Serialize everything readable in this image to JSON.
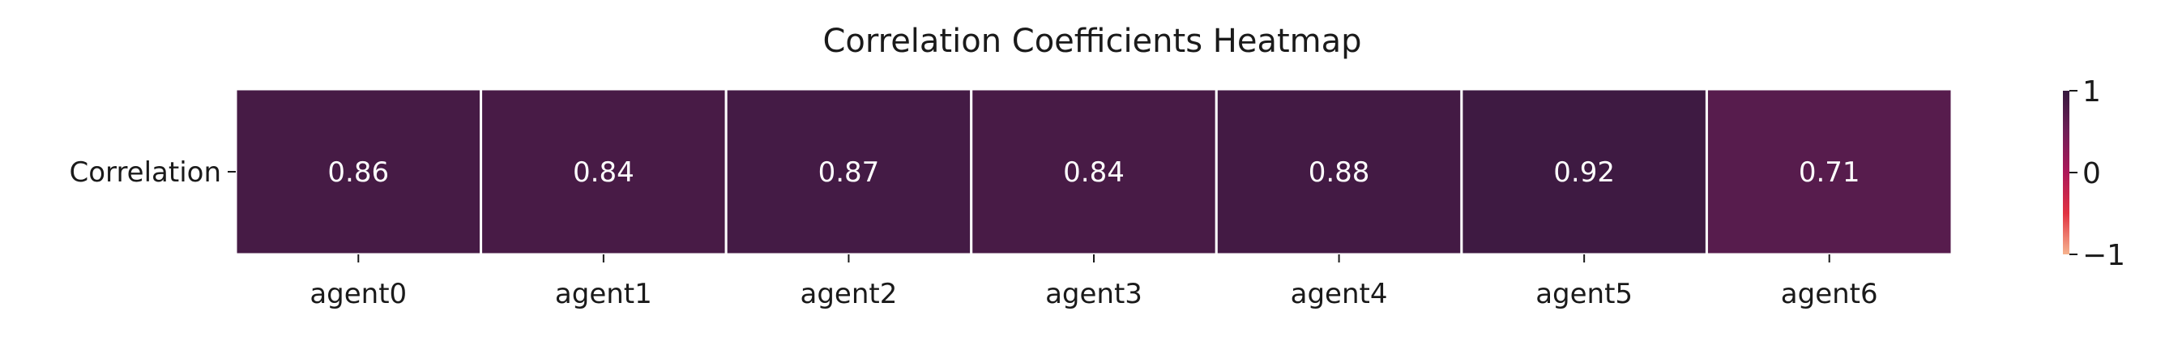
{
  "chart_data": {
    "type": "heatmap",
    "title": "Correlation Coefficients Heatmap",
    "xlabel": "",
    "ylabel": "",
    "rows": [
      "Correlation"
    ],
    "columns": [
      "agent0",
      "agent1",
      "agent2",
      "agent3",
      "agent4",
      "agent5",
      "agent6"
    ],
    "values": [
      [
        0.86,
        0.84,
        0.87,
        0.84,
        0.88,
        0.92,
        0.71
      ]
    ],
    "value_labels": [
      [
        "0.86",
        "0.84",
        "0.87",
        "0.84",
        "0.88",
        "0.92",
        "0.71"
      ]
    ],
    "colorbar": {
      "range": [
        -1,
        1
      ],
      "tick_labels": [
        "1",
        "0",
        "−1"
      ],
      "tick_values": [
        1,
        0,
        -1
      ],
      "colormap_stops": [
        "#f6b48f",
        "#e13342",
        "#ad1759",
        "#701f57",
        "#35193e"
      ]
    },
    "grid": false,
    "legend": "colorbar-right"
  }
}
